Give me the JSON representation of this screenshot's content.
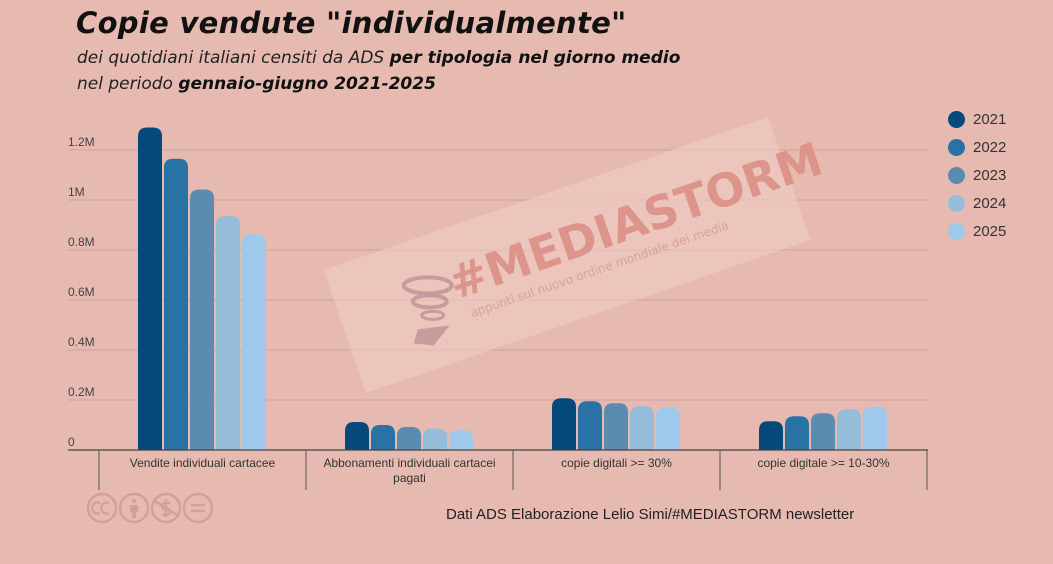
{
  "header": {
    "title": "Copie vendute \"individualmente\"",
    "subtitle_line1_plain": "dei quotidiani italiani censiti da ADS ",
    "subtitle_line1_bold": "per tipologia nel giorno medio",
    "subtitle_line2_plain": "nel periodo ",
    "subtitle_line2_bold": "gennaio-giugno 2021-2025"
  },
  "watermark": {
    "brand": "#MEDIASTORM",
    "tagline": "appunti sul nuovo ordine mondiale dei media"
  },
  "source": "Dati ADS  Elaborazione Lelio Simi/#MEDIASTORM newsletter",
  "license_icons": [
    "cc-icon",
    "attribution-icon",
    "noncommercial-icon",
    "noderivatives-icon"
  ],
  "chart_data": {
    "type": "bar",
    "title": "Copie vendute \"individualmente\"",
    "xlabel": "",
    "ylabel": "",
    "ylim": [
      0,
      1300000
    ],
    "yticks": [
      0,
      200000,
      400000,
      600000,
      800000,
      1000000,
      1200000
    ],
    "ytick_labels": [
      "0",
      "0.2M",
      "0.4M",
      "0.6M",
      "0.8M",
      "1M",
      "1.2M"
    ],
    "grid": true,
    "legend_position": "right",
    "categories": [
      "Vendite individuali cartacee",
      "Abbonamenti individuali cartacei pagati",
      "copie digitali >= 30%",
      "copie digitale >= 10-30%"
    ],
    "category_lines": [
      [
        "Vendite individuali cartacee"
      ],
      [
        "Abbonamenti individuali cartacei",
        "pagati"
      ],
      [
        "copie digitali >= 30%"
      ],
      [
        "copie digitale >= 10-30%"
      ]
    ],
    "series": [
      {
        "name": "2021",
        "color": "#05497a",
        "values": [
          1290000,
          112000,
          207000,
          115000
        ]
      },
      {
        "name": "2022",
        "color": "#2872a6",
        "values": [
          1165000,
          100000,
          195000,
          135000
        ]
      },
      {
        "name": "2023",
        "color": "#5a8bb0",
        "values": [
          1042000,
          92000,
          187000,
          147000
        ]
      },
      {
        "name": "2024",
        "color": "#95bcd8",
        "values": [
          935000,
          86000,
          175000,
          163000
        ]
      },
      {
        "name": "2025",
        "color": "#9ec9ea",
        "values": [
          862000,
          79000,
          170000,
          173000
        ]
      }
    ]
  }
}
